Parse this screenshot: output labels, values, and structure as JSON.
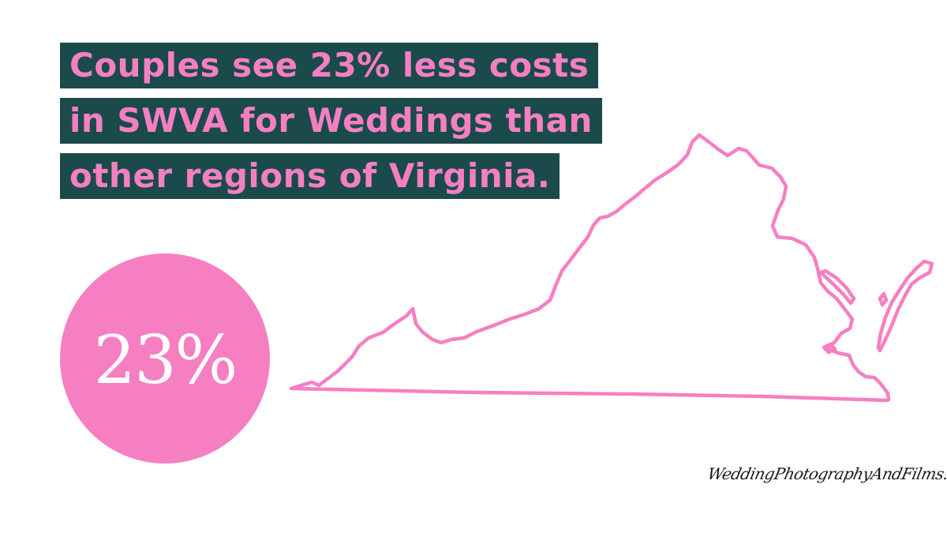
{
  "headline": {
    "lines": [
      "Couples see 23% less costs",
      "in SWVA for Weddings than",
      "other regions of Virginia."
    ]
  },
  "stat": {
    "value": "23%"
  },
  "map": {
    "region": "Virginia",
    "icon": "virginia-outline-icon"
  },
  "watermark": {
    "text": "WeddingPhotographyAndFilms.com"
  },
  "colors": {
    "accent": "#f67fc2",
    "banner": "#1b4a4b",
    "background": "#ffffff"
  }
}
